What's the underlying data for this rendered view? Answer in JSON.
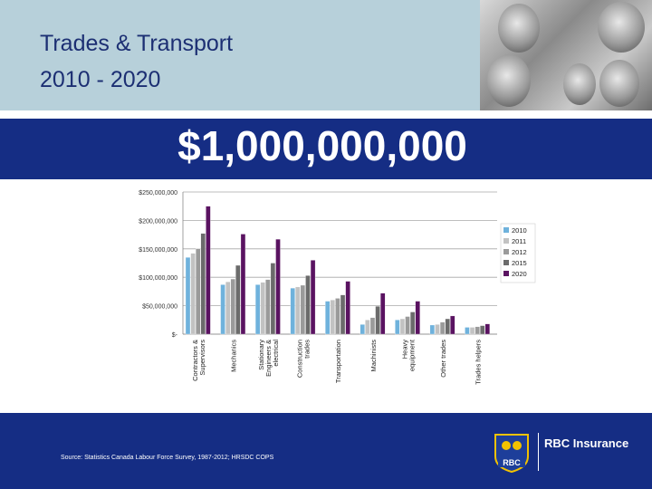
{
  "header": {
    "title_line1": "Trades & Transport",
    "title_line2": "2010 - 2020"
  },
  "banner": {
    "amount": "$1,000,000,000"
  },
  "source": "Source: Statistics Canada Labour Force Survey, 1987-2012; HRSDC COPS",
  "brand": {
    "name": "RBC Insurance",
    "logo_text": "RBC"
  },
  "chart_data": {
    "type": "bar",
    "categories": [
      "Contractors & Supervisors",
      "Mechanics",
      "Stationary Engineers & electrical",
      "Construction trades",
      "Transportation",
      "Machinists",
      "Heavy equipment",
      "Other trades",
      "Trades helpers"
    ],
    "category_label_lines": [
      [
        "Contractors &",
        "Supervisors"
      ],
      [
        "Mechanics"
      ],
      [
        "Stationary",
        "Engineers &",
        "electrical"
      ],
      [
        "Construction",
        "trades"
      ],
      [
        "Transportation"
      ],
      [
        "Machinists"
      ],
      [
        "Heavy",
        "equipment"
      ],
      [
        "Other trades"
      ],
      [
        "Trades helpers"
      ]
    ],
    "series": [
      {
        "name": "2010",
        "color": "#6fb2dc",
        "values": [
          135000000,
          87000000,
          87000000,
          81000000,
          58000000,
          17000000,
          25000000,
          16000000,
          12000000
        ]
      },
      {
        "name": "2011",
        "color": "#c2c2c2",
        "values": [
          142000000,
          92000000,
          91000000,
          83000000,
          60000000,
          25000000,
          27000000,
          17000000,
          12000000
        ]
      },
      {
        "name": "2012",
        "color": "#9a9a9a",
        "values": [
          150000000,
          97000000,
          96000000,
          86000000,
          63000000,
          29000000,
          31000000,
          21000000,
          13000000
        ]
      },
      {
        "name": "2015",
        "color": "#6b6b6b",
        "values": [
          177000000,
          121000000,
          125000000,
          103000000,
          69000000,
          49000000,
          39000000,
          27000000,
          15000000
        ]
      },
      {
        "name": "2020",
        "color": "#5a1361",
        "values": [
          225000000,
          176000000,
          167000000,
          130000000,
          93000000,
          72000000,
          58000000,
          32000000,
          18000000
        ]
      }
    ],
    "y_ticks": [
      {
        "value": 0,
        "label": "$-"
      },
      {
        "value": 50000000,
        "label": "$50,000,000"
      },
      {
        "value": 100000000,
        "label": "$100,000,000"
      },
      {
        "value": 150000000,
        "label": "$150,000,000"
      },
      {
        "value": 200000000,
        "label": "$200,000,000"
      },
      {
        "value": 250000000,
        "label": "$250,000,000"
      }
    ],
    "ylim": [
      0,
      250000000
    ],
    "grid": true,
    "legend_position": "right"
  }
}
